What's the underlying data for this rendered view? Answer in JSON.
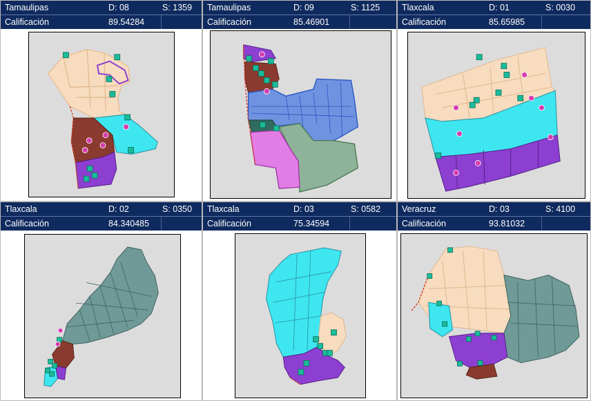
{
  "panels": [
    {
      "state": "Tamaulipas",
      "district": "D: 08",
      "section": "S: 1359",
      "score_label": "Calificación",
      "score": "89.54284"
    },
    {
      "state": "Tamaulipas",
      "district": "D: 09",
      "section": "S: 1125",
      "score_label": "Calificación",
      "score": "85.46901"
    },
    {
      "state": "Tlaxcala",
      "district": "D: 01",
      "section": "S: 0030",
      "score_label": "Calificación",
      "score": "85.65985"
    },
    {
      "state": "Tlaxcala",
      "district": "D: 02",
      "section": "S: 0350",
      "score_label": "Calificación",
      "score": "84.340485"
    },
    {
      "state": "Tlaxcala",
      "district": "D: 03",
      "section": "S: 0582",
      "score_label": "Calificación",
      "score": "75.34594"
    },
    {
      "state": "Veracruz",
      "district": "D: 03",
      "section": "S: 4100",
      "score_label": "Calificación",
      "score": "93.81032"
    }
  ],
  "colors": {
    "header_bg": "#0f2a5e",
    "zone_peach": "#f7dcbf",
    "zone_cyan": "#3ee6f0",
    "zone_purple": "#8d3fd1",
    "zone_brown": "#8a3a2e",
    "zone_blue": "#6f93e0",
    "zone_green": "#8fb39a",
    "zone_pink": "#e27de6",
    "zone_slate": "#6f9a97",
    "marker_school": "#1abc9c",
    "marker_c": "#d63cae"
  }
}
